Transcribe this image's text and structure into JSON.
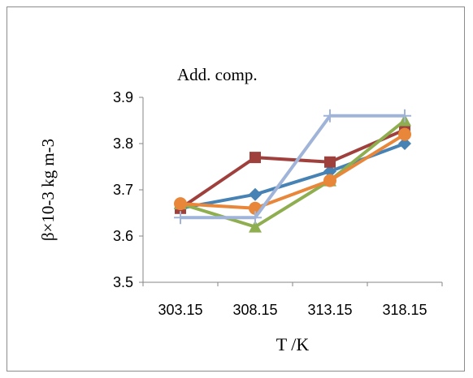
{
  "chart_data": {
    "type": "line",
    "title": "Add. comp.",
    "xlabel": "T /K",
    "ylabel": "β×10-3 kg m-3",
    "categories": [
      "303.15",
      "308.15",
      "313.15",
      "318.15"
    ],
    "yticks": [
      "3.5",
      "3.6",
      "3.7",
      "3.8",
      "3.9"
    ],
    "ylim": [
      3.5,
      3.9
    ],
    "grid": false,
    "legend": "none",
    "series": [
      {
        "color": "#4682b4",
        "marker": "diamond",
        "values": [
          3.66,
          3.69,
          3.74,
          3.8
        ]
      },
      {
        "color": "#a0403d",
        "marker": "square",
        "values": [
          3.66,
          3.77,
          3.76,
          3.83
        ]
      },
      {
        "color": "#8fae4f",
        "marker": "triangle",
        "values": [
          3.67,
          3.62,
          3.72,
          3.85
        ]
      },
      {
        "color": "#e8863a",
        "marker": "circle",
        "values": [
          3.67,
          3.66,
          3.72,
          3.82
        ]
      },
      {
        "color": "#9fb4d8",
        "marker": "plus",
        "values": [
          3.64,
          3.64,
          3.86,
          3.86
        ]
      }
    ]
  }
}
